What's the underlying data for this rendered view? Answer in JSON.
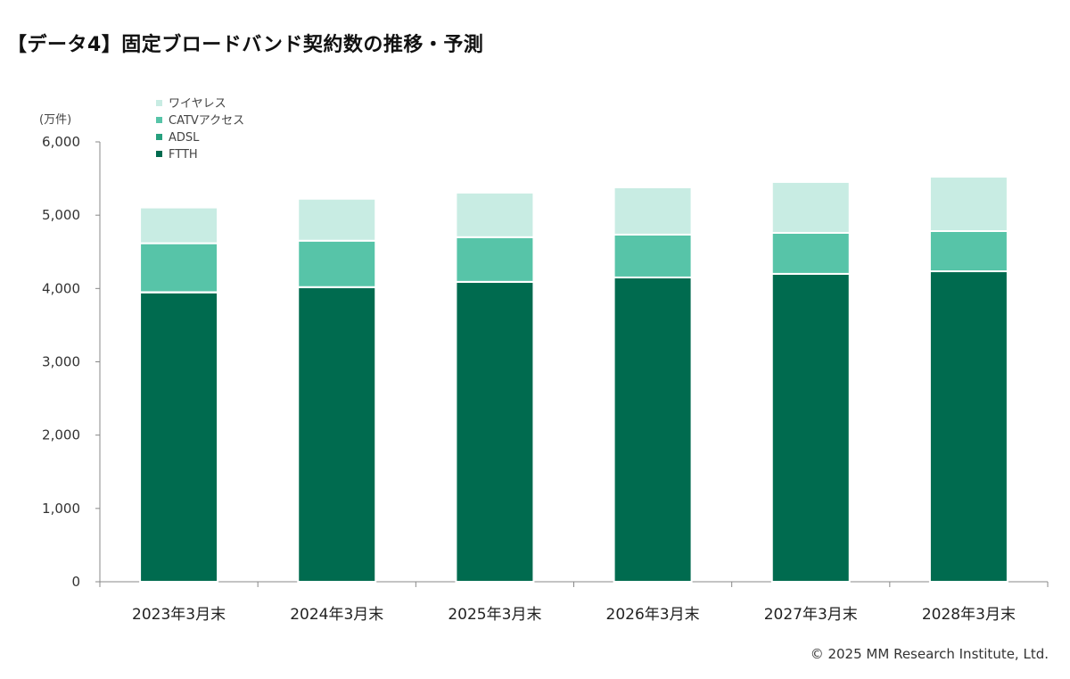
{
  "chart_data": {
    "type": "bar",
    "stacked": true,
    "title": "【データ4】固定ブロードバンド契約数の推移・予測",
    "ylabel": "(万件)",
    "xlabel": "",
    "ylim": [
      0,
      6000
    ],
    "yticks": [
      0,
      1000,
      2000,
      3000,
      4000,
      5000,
      6000
    ],
    "ytick_labels": [
      "0",
      "1,000",
      "2,000",
      "3,000",
      "4,000",
      "5,000",
      "6,000"
    ],
    "categories": [
      "2023年3月末",
      "2024年3月末",
      "2025年3月末",
      "2026年3月末",
      "2027年3月末",
      "2028年3月末"
    ],
    "series": [
      {
        "name": "FTTH",
        "color": "#006b4f",
        "values": [
          3945,
          4016,
          4089,
          4150,
          4199,
          4235
        ]
      },
      {
        "name": "ADSL",
        "color": "#27a07e",
        "values": [
          5,
          3,
          2,
          1,
          1,
          0
        ]
      },
      {
        "name": "CATVアクセス",
        "color": "#57c4a8",
        "values": [
          667,
          633,
          609,
          584,
          559,
          548
        ]
      },
      {
        "name": "ワイヤレス",
        "color": "#c8ece3",
        "values": [
          488,
          572,
          608,
          645,
          694,
          742
        ]
      }
    ],
    "legend_order": [
      "ワイヤレス",
      "CATVアクセス",
      "ADSL",
      "FTTH"
    ],
    "legend_position": "top-left",
    "grid": false
  },
  "copyright": "© 2025 MM Research Institute, Ltd."
}
